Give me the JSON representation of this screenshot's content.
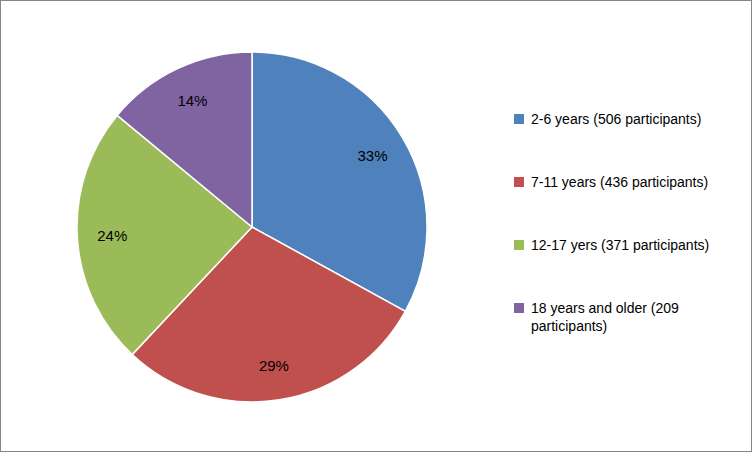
{
  "chart_data": {
    "type": "pie",
    "categories": [
      "2-6 years (506 participants)",
      "7-11 years (436 participants)",
      "12-17 yers (371 participants)",
      "18 years and older (209 participants)"
    ],
    "values": [
      33,
      29,
      24,
      14
    ],
    "value_labels": [
      "33%",
      "29%",
      "24%",
      "14%"
    ],
    "colors": [
      "#4f81bd",
      "#c0504d",
      "#9bbb59",
      "#8064a2"
    ],
    "data_labels": true,
    "legend": "right"
  }
}
